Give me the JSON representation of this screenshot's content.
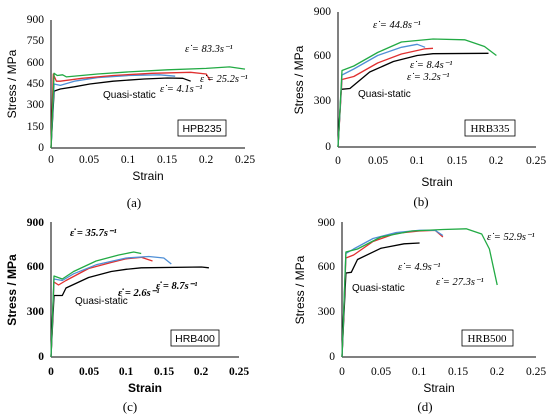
{
  "chart_data": [
    {
      "type": "line",
      "panel_label": "(a)",
      "grade": "HPB235",
      "xlabel": "Strain",
      "ylabel": "Stress / MPa",
      "xlim": [
        0,
        0.25
      ],
      "ylim": [
        0,
        900
      ],
      "xticks": [
        "0",
        "0.05",
        "0.1",
        "0.15",
        "0.2",
        "0.25"
      ],
      "yticks": [
        "0",
        "150",
        "300",
        "450",
        "600",
        "750",
        "900"
      ],
      "grid": false,
      "series": [
        {
          "name": "Quasi-static",
          "color": "#000000",
          "points": [
            [
              0,
              0
            ],
            [
              0.004,
              400
            ],
            [
              0.012,
              415
            ],
            [
              0.03,
              430
            ],
            [
              0.05,
              450
            ],
            [
              0.08,
              470
            ],
            [
              0.12,
              485
            ],
            [
              0.15,
              492
            ],
            [
              0.17,
              490
            ],
            [
              0.18,
              470
            ]
          ]
        },
        {
          "name": "4.1 s-1",
          "color": "#4f8fd6",
          "points": [
            [
              0,
              0
            ],
            [
              0.004,
              450
            ],
            [
              0.012,
              440
            ],
            [
              0.03,
              470
            ],
            [
              0.06,
              495
            ],
            [
              0.1,
              510
            ],
            [
              0.14,
              515
            ],
            [
              0.16,
              505
            ]
          ]
        },
        {
          "name": "25.2 s-1",
          "color": "#e03030",
          "points": [
            [
              0,
              0
            ],
            [
              0.003,
              520
            ],
            [
              0.007,
              470
            ],
            [
              0.012,
              470
            ],
            [
              0.04,
              490
            ],
            [
              0.08,
              510
            ],
            [
              0.13,
              525
            ],
            [
              0.18,
              532
            ],
            [
              0.2,
              520
            ],
            [
              0.205,
              475
            ]
          ]
        },
        {
          "name": "83.3 s-1",
          "color": "#22aa44",
          "points": [
            [
              0,
              0
            ],
            [
              0.004,
              525
            ],
            [
              0.008,
              510
            ],
            [
              0.015,
              515
            ],
            [
              0.02,
              500
            ],
            [
              0.06,
              520
            ],
            [
              0.1,
              535
            ],
            [
              0.15,
              550
            ],
            [
              0.2,
              560
            ],
            [
              0.23,
              570
            ],
            [
              0.25,
              555
            ]
          ]
        }
      ],
      "annotations": [
        "ε̇ = 83.3s⁻¹",
        "ε̇ = 25.2s⁻¹",
        "ε̇ = 4.1s⁻¹",
        "Quasi-static"
      ]
    },
    {
      "type": "line",
      "panel_label": "(b)",
      "grade": "HRB335",
      "xlabel": "Strain",
      "ylabel": "Stress / MPa",
      "xlim": [
        0,
        0.25
      ],
      "ylim": [
        0,
        900
      ],
      "xticks": [
        "0",
        "0.05",
        "0.1",
        "0.15",
        "0.2",
        "0.25"
      ],
      "yticks": [
        "0",
        "300",
        "600",
        "900"
      ],
      "grid": false,
      "series": [
        {
          "name": "Quasi-static",
          "color": "#000000",
          "points": [
            [
              0,
              0
            ],
            [
              0.004,
              385
            ],
            [
              0.015,
              390
            ],
            [
              0.04,
              500
            ],
            [
              0.07,
              570
            ],
            [
              0.1,
              610
            ],
            [
              0.12,
              622
            ],
            [
              0.19,
              625
            ]
          ]
        },
        {
          "name": "3.2 s-1",
          "color": "#e03030",
          "points": [
            [
              0,
              0
            ],
            [
              0.005,
              450
            ],
            [
              0.02,
              470
            ],
            [
              0.05,
              560
            ],
            [
              0.08,
              620
            ],
            [
              0.11,
              655
            ],
            [
              0.12,
              658
            ]
          ]
        },
        {
          "name": "8.4 s-1",
          "color": "#4f8fd6",
          "points": [
            [
              0,
              0
            ],
            [
              0.005,
              480
            ],
            [
              0.02,
              520
            ],
            [
              0.05,
              610
            ],
            [
              0.08,
              665
            ],
            [
              0.1,
              685
            ],
            [
              0.11,
              665
            ]
          ]
        },
        {
          "name": "44.8 s-1",
          "color": "#22aa44",
          "points": [
            [
              0,
              0
            ],
            [
              0.005,
              510
            ],
            [
              0.02,
              540
            ],
            [
              0.05,
              630
            ],
            [
              0.08,
              700
            ],
            [
              0.12,
              720
            ],
            [
              0.16,
              715
            ],
            [
              0.185,
              670
            ],
            [
              0.2,
              610
            ]
          ]
        }
      ],
      "annotations": [
        "ε̇ = 44.8s⁻¹",
        "ε̇ = 8.4s⁻¹",
        "ε̇ = 3.2s⁻¹",
        "Quasi-static"
      ]
    },
    {
      "type": "line",
      "panel_label": "(c)",
      "grade": "HRB400",
      "xlabel": "Strain",
      "ylabel": "Stress / MPa",
      "xlim": [
        0,
        0.25
      ],
      "ylim": [
        0,
        900
      ],
      "xticks": [
        "0",
        "0.05",
        "0.1",
        "0.15",
        "0.2",
        "0.25"
      ],
      "yticks": [
        "0",
        "300",
        "600",
        "900"
      ],
      "grid": false,
      "series": [
        {
          "name": "Quasi-static",
          "color": "#000000",
          "points": [
            [
              0,
              0
            ],
            [
              0.004,
              410
            ],
            [
              0.015,
              410
            ],
            [
              0.02,
              460
            ],
            [
              0.05,
              530
            ],
            [
              0.08,
              570
            ],
            [
              0.1,
              585
            ],
            [
              0.12,
              595
            ],
            [
              0.2,
              600
            ],
            [
              0.21,
              595
            ]
          ]
        },
        {
          "name": "2.6 s-1",
          "color": "#e03030",
          "points": [
            [
              0,
              0
            ],
            [
              0.004,
              500
            ],
            [
              0.01,
              480
            ],
            [
              0.02,
              510
            ],
            [
              0.05,
              590
            ],
            [
              0.08,
              630
            ],
            [
              0.1,
              655
            ],
            [
              0.12,
              665
            ],
            [
              0.135,
              640
            ]
          ]
        },
        {
          "name": "8.7 s-1",
          "color": "#4f8fd6",
          "points": [
            [
              0,
              0
            ],
            [
              0.004,
              520
            ],
            [
              0.015,
              510
            ],
            [
              0.03,
              555
            ],
            [
              0.06,
              615
            ],
            [
              0.1,
              660
            ],
            [
              0.13,
              670
            ],
            [
              0.15,
              660
            ],
            [
              0.16,
              620
            ]
          ]
        },
        {
          "name": "35.7 s-1",
          "color": "#22aa44",
          "points": [
            [
              0,
              0
            ],
            [
              0.004,
              540
            ],
            [
              0.015,
              520
            ],
            [
              0.03,
              570
            ],
            [
              0.06,
              640
            ],
            [
              0.09,
              680
            ],
            [
              0.11,
              700
            ],
            [
              0.12,
              690
            ]
          ]
        }
      ],
      "annotations": [
        "ε̇ = 35.7s⁻¹",
        "ε̇ = 2.6s⁻¹",
        "ε̇ = 8.7s⁻¹",
        "Quasi-static"
      ]
    },
    {
      "type": "line",
      "panel_label": "(d)",
      "grade": "HRB500",
      "xlabel": "Strain",
      "ylabel": "Stress / MPa",
      "xlim": [
        0,
        0.25
      ],
      "ylim": [
        0,
        900
      ],
      "xticks": [
        "0",
        "0.05",
        "0.1",
        "0.15",
        "0.2",
        "0.25"
      ],
      "yticks": [
        "0",
        "300",
        "600",
        "900"
      ],
      "grid": false,
      "series": [
        {
          "name": "Quasi-static",
          "color": "#000000",
          "points": [
            [
              0,
              0
            ],
            [
              0.005,
              560
            ],
            [
              0.012,
              565
            ],
            [
              0.02,
              650
            ],
            [
              0.05,
              725
            ],
            [
              0.08,
              755
            ],
            [
              0.1,
              760
            ]
          ]
        },
        {
          "name": "4.9 s-1",
          "color": "#e03030",
          "points": [
            [
              0,
              0
            ],
            [
              0.005,
              660
            ],
            [
              0.015,
              680
            ],
            [
              0.04,
              770
            ],
            [
              0.07,
              825
            ],
            [
              0.1,
              840
            ],
            [
              0.12,
              845
            ],
            [
              0.13,
              800
            ]
          ]
        },
        {
          "name": "27.3 s-1",
          "color": "#4f8fd6",
          "points": [
            [
              0,
              0
            ],
            [
              0.005,
              690
            ],
            [
              0.015,
              720
            ],
            [
              0.04,
              790
            ],
            [
              0.07,
              830
            ],
            [
              0.1,
              845
            ],
            [
              0.12,
              845
            ],
            [
              0.13,
              810
            ]
          ]
        },
        {
          "name": "52.9 s-1",
          "color": "#22aa44",
          "points": [
            [
              0,
              0
            ],
            [
              0.005,
              700
            ],
            [
              0.02,
              720
            ],
            [
              0.05,
              800
            ],
            [
              0.09,
              840
            ],
            [
              0.13,
              850
            ],
            [
              0.16,
              855
            ],
            [
              0.18,
              820
            ],
            [
              0.19,
              720
            ],
            [
              0.2,
              480
            ]
          ]
        }
      ],
      "annotations": [
        "ε̇ = 52.9s⁻¹",
        "ε̇ = 4.9s⁻¹",
        "ε̇ = 27.3s⁻¹",
        "Quasi-static"
      ]
    }
  ]
}
